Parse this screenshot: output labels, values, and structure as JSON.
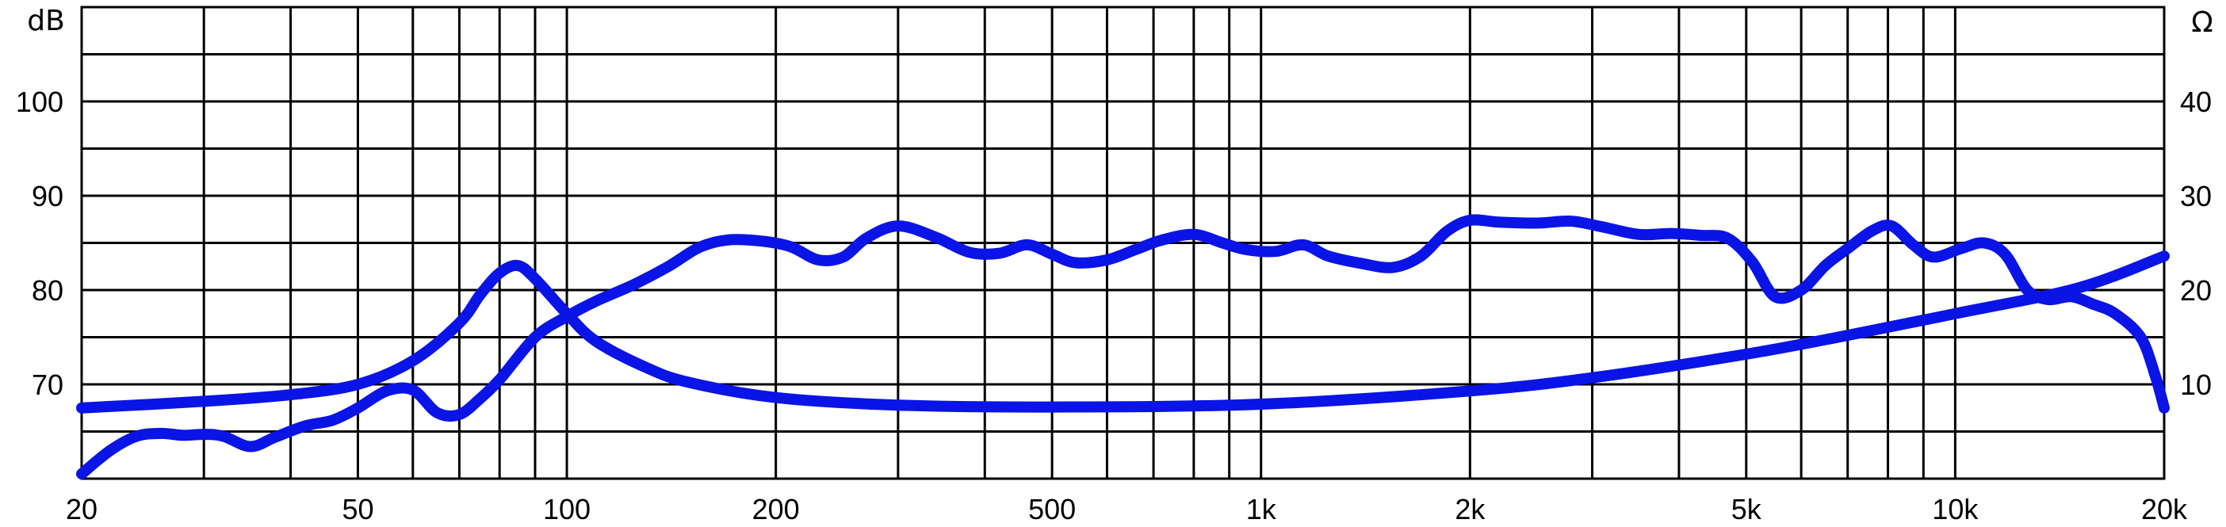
{
  "chart_data": {
    "type": "line",
    "x_scale": "log",
    "xlim": [
      20,
      20000
    ],
    "x_ticks": [
      {
        "value": 20,
        "label": "20"
      },
      {
        "value": 50,
        "label": "50"
      },
      {
        "value": 100,
        "label": "100"
      },
      {
        "value": 200,
        "label": "200"
      },
      {
        "value": 500,
        "label": "500"
      },
      {
        "value": 1000,
        "label": "1k"
      },
      {
        "value": 2000,
        "label": "2k"
      },
      {
        "value": 5000,
        "label": "5k"
      },
      {
        "value": 10000,
        "label": "10k"
      },
      {
        "value": 20000,
        "label": "20k"
      }
    ],
    "y_left": {
      "unit": "dB",
      "range": [
        60,
        110
      ],
      "ticks": [
        {
          "value": 70,
          "label": "70"
        },
        {
          "value": 80,
          "label": "80"
        },
        {
          "value": 90,
          "label": "90"
        },
        {
          "value": 100,
          "label": "100"
        }
      ]
    },
    "y_right": {
      "unit": "Ω",
      "range": [
        0,
        50
      ],
      "ticks": [
        {
          "value": 10,
          "label": "10"
        },
        {
          "value": 20,
          "label": "20"
        },
        {
          "value": 30,
          "label": "30"
        },
        {
          "value": 40,
          "label": "40"
        }
      ]
    },
    "grid": true,
    "grid_y_step_db": 5,
    "line_color": "#0a14e6",
    "series": [
      {
        "axis": "left",
        "points": [
          [
            20,
            60.5
          ],
          [
            22,
            63
          ],
          [
            24,
            64.5
          ],
          [
            26,
            64.8
          ],
          [
            28,
            64.6
          ],
          [
            30,
            64.7
          ],
          [
            32,
            64.5
          ],
          [
            35,
            63.4
          ],
          [
            38,
            64.4
          ],
          [
            42,
            65.6
          ],
          [
            46,
            66.2
          ],
          [
            50,
            67.5
          ],
          [
            55,
            69.3
          ],
          [
            60,
            69.4
          ],
          [
            65,
            67
          ],
          [
            70,
            66.8
          ],
          [
            75,
            68.5
          ],
          [
            80,
            70.5
          ],
          [
            90,
            75
          ],
          [
            100,
            77.2
          ],
          [
            110,
            78.8
          ],
          [
            125,
            80.6
          ],
          [
            140,
            82.5
          ],
          [
            155,
            84.5
          ],
          [
            170,
            85.3
          ],
          [
            190,
            85.2
          ],
          [
            210,
            84.6
          ],
          [
            230,
            83.2
          ],
          [
            250,
            83.5
          ],
          [
            270,
            85.5
          ],
          [
            300,
            86.8
          ],
          [
            340,
            85.6
          ],
          [
            380,
            84
          ],
          [
            420,
            83.9
          ],
          [
            460,
            84.8
          ],
          [
            500,
            83.8
          ],
          [
            540,
            82.9
          ],
          [
            600,
            83.2
          ],
          [
            660,
            84.3
          ],
          [
            720,
            85.3
          ],
          [
            800,
            85.9
          ],
          [
            880,
            85
          ],
          [
            950,
            84.3
          ],
          [
            1050,
            84.1
          ],
          [
            1150,
            84.8
          ],
          [
            1250,
            83.6
          ],
          [
            1400,
            82.8
          ],
          [
            1550,
            82.4
          ],
          [
            1700,
            83.6
          ],
          [
            1850,
            86.2
          ],
          [
            2000,
            87.4
          ],
          [
            2200,
            87.2
          ],
          [
            2500,
            87.1
          ],
          [
            2800,
            87.3
          ],
          [
            3100,
            86.7
          ],
          [
            3500,
            85.9
          ],
          [
            3900,
            86
          ],
          [
            4300,
            85.8
          ],
          [
            4700,
            85.5
          ],
          [
            5100,
            83
          ],
          [
            5500,
            79.3
          ],
          [
            6000,
            80
          ],
          [
            6500,
            82.6
          ],
          [
            7000,
            84.4
          ],
          [
            7600,
            86.3
          ],
          [
            8100,
            86.8
          ],
          [
            8700,
            84.8
          ],
          [
            9300,
            83.5
          ],
          [
            10200,
            84.4
          ],
          [
            11000,
            85
          ],
          [
            11800,
            83.8
          ],
          [
            12700,
            80
          ],
          [
            13600,
            79
          ],
          [
            14700,
            79.3
          ],
          [
            15800,
            78.5
          ],
          [
            17000,
            77.5
          ],
          [
            18500,
            75
          ],
          [
            19400,
            71
          ],
          [
            20000,
            67.5
          ]
        ]
      },
      {
        "axis": "right",
        "points": [
          [
            20,
            7.5
          ],
          [
            30,
            8.2
          ],
          [
            40,
            8.9
          ],
          [
            50,
            10
          ],
          [
            60,
            12.5
          ],
          [
            70,
            16.5
          ],
          [
            75,
            19.5
          ],
          [
            80,
            21.8
          ],
          [
            85,
            22.6
          ],
          [
            90,
            21.2
          ],
          [
            100,
            17.5
          ],
          [
            110,
            14.6
          ],
          [
            130,
            11.8
          ],
          [
            150,
            10.2
          ],
          [
            200,
            8.6
          ],
          [
            300,
            7.8
          ],
          [
            500,
            7.6
          ],
          [
            1000,
            7.9
          ],
          [
            2000,
            9.3
          ],
          [
            3000,
            10.7
          ],
          [
            5000,
            13.2
          ],
          [
            7000,
            15.2
          ],
          [
            10000,
            17.5
          ],
          [
            15000,
            20.2
          ],
          [
            20000,
            23.6
          ]
        ]
      }
    ]
  }
}
